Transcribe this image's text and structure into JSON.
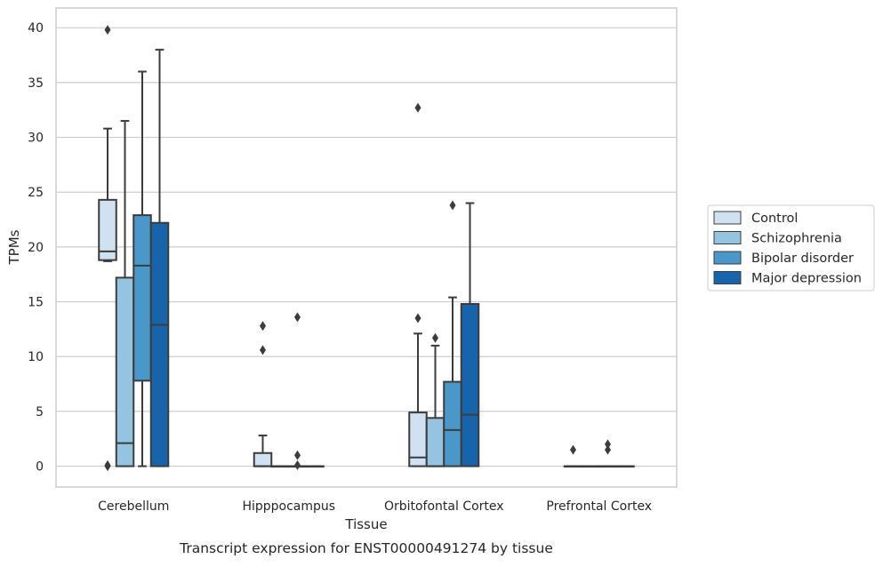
{
  "chart_data": {
    "type": "box",
    "caption": "Transcript expression for ENST00000491274 by tissue",
    "xlabel": "Tissue",
    "ylabel": "TPMs",
    "ylim": [
      -1.9,
      41.8
    ],
    "yticks": [
      0,
      5,
      10,
      15,
      20,
      25,
      30,
      35,
      40
    ],
    "grid": true,
    "legend_position": "right-center",
    "categories": [
      "Cerebellum",
      "Hipppocampus",
      "Orbitofontal Cortex",
      "Prefrontal Cortex"
    ],
    "series": [
      {
        "name": "Control",
        "color": "#d0e1f2",
        "boxes": [
          {
            "whisker_low": 18.7,
            "q1": 18.8,
            "median": 19.6,
            "q3": 24.3,
            "whisker_high": 30.8,
            "outliers": [
              39.8,
              0.1,
              0
            ]
          },
          {
            "whisker_low": 0,
            "q1": 0,
            "median": 0,
            "q3": 1.2,
            "whisker_high": 2.8,
            "outliers": [
              12.8,
              10.6
            ]
          },
          {
            "whisker_low": 0,
            "q1": 0,
            "median": 0.8,
            "q3": 4.9,
            "whisker_high": 12.1,
            "outliers": [
              32.7,
              13.5
            ]
          },
          {
            "whisker_low": 0,
            "q1": 0,
            "median": 0,
            "q3": 0,
            "whisker_high": 0,
            "outliers": [
              1.5
            ]
          }
        ]
      },
      {
        "name": "Schizophrenia",
        "color": "#94c4df",
        "boxes": [
          {
            "whisker_low": 0,
            "q1": 0,
            "median": 2.1,
            "q3": 17.2,
            "whisker_high": 31.5,
            "outliers": []
          },
          {
            "whisker_low": 0,
            "q1": 0,
            "median": 0,
            "q3": 0,
            "whisker_high": 0,
            "outliers": []
          },
          {
            "whisker_low": 0,
            "q1": 0,
            "median": 0,
            "q3": 4.4,
            "whisker_high": 11.0,
            "outliers": [
              11.7
            ]
          },
          {
            "whisker_low": 0,
            "q1": 0,
            "median": 0,
            "q3": 0,
            "whisker_high": 0,
            "outliers": []
          }
        ]
      },
      {
        "name": "Bipolar disorder",
        "color": "#4a98c9",
        "boxes": [
          {
            "whisker_low": 0,
            "q1": 7.8,
            "median": 18.3,
            "q3": 22.9,
            "whisker_high": 36.0,
            "outliers": []
          },
          {
            "whisker_low": 0,
            "q1": 0,
            "median": 0,
            "q3": 0,
            "whisker_high": 0,
            "outliers": [
              13.6,
              1.0,
              0.1
            ]
          },
          {
            "whisker_low": 0,
            "q1": 0,
            "median": 3.3,
            "q3": 7.7,
            "whisker_high": 15.4,
            "outliers": [
              23.8
            ]
          },
          {
            "whisker_low": 0,
            "q1": 0,
            "median": 0,
            "q3": 0,
            "whisker_high": 0,
            "outliers": [
              2.0,
              1.5
            ]
          }
        ]
      },
      {
        "name": "Major depression",
        "color": "#1764ab",
        "boxes": [
          {
            "whisker_low": 0,
            "q1": 0,
            "median": 12.9,
            "q3": 22.2,
            "whisker_high": 38.0,
            "outliers": []
          },
          {
            "whisker_low": 0,
            "q1": 0,
            "median": 0,
            "q3": 0,
            "whisker_high": 0,
            "outliers": []
          },
          {
            "whisker_low": 0,
            "q1": 0,
            "median": 4.7,
            "q3": 14.8,
            "whisker_high": 24.0,
            "outliers": []
          },
          {
            "whisker_low": 0,
            "q1": 0,
            "median": 0,
            "q3": 0,
            "whisker_high": 0,
            "outliers": []
          }
        ]
      }
    ]
  }
}
